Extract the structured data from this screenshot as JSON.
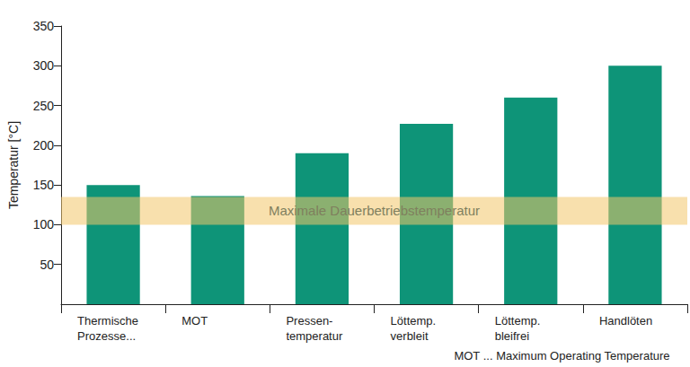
{
  "chart_data": {
    "type": "bar",
    "y_label": "Temperatur [°C]",
    "categories": [
      "Thermische\nProzesse...",
      "MOT",
      "Pressen-\ntemperatur",
      "Löttemp.\nverbleit",
      "Löttemp.\nbleifrei",
      "Handlöten"
    ],
    "values": [
      150,
      136,
      190,
      227,
      260,
      300
    ],
    "color": "#0e9478",
    "ylim": [
      0,
      350
    ],
    "yticks": [
      50,
      100,
      150,
      200,
      250,
      300,
      350
    ],
    "grid": false,
    "annotations": [
      {
        "text": "Maximale Dauerbetriebstemperatur",
        "y_range": [
          100,
          135
        ],
        "color": "#f3c76a"
      }
    ],
    "caption": "MOT ... Maximum Operating Temperature"
  }
}
